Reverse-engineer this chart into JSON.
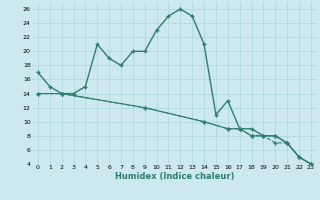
{
  "xlabel": "Humidex (Indice chaleur)",
  "bg_color": "#cce9f0",
  "grid_color": "#b0d8e2",
  "line_color": "#2e7d6e",
  "xlim": [
    -0.5,
    23.5
  ],
  "ylim": [
    4,
    27
  ],
  "xticks": [
    0,
    1,
    2,
    3,
    4,
    5,
    6,
    7,
    8,
    9,
    10,
    11,
    12,
    13,
    14,
    15,
    16,
    17,
    18,
    19,
    20,
    21,
    22,
    23
  ],
  "yticks": [
    4,
    6,
    8,
    10,
    12,
    14,
    16,
    18,
    20,
    22,
    24,
    26
  ],
  "curve1_x": [
    0,
    1,
    2,
    3,
    4,
    5,
    6,
    7,
    8,
    9,
    10,
    11,
    12,
    13,
    14,
    15,
    16,
    17,
    18,
    19,
    20,
    21,
    22,
    23
  ],
  "curve1_y": [
    17,
    15,
    14,
    14,
    15,
    21,
    19,
    18,
    20,
    20,
    23,
    25,
    26,
    25,
    21,
    11,
    13,
    9,
    9,
    8,
    8,
    7,
    5,
    4
  ],
  "curve2_x": [
    0,
    2,
    9,
    14,
    16,
    17,
    18,
    19,
    20,
    21,
    22,
    23
  ],
  "curve2_y": [
    14,
    14,
    12,
    10,
    9,
    9,
    8,
    8,
    8,
    7,
    5,
    4
  ],
  "curve3_x": [
    0,
    2,
    9,
    14,
    16,
    17,
    18,
    19,
    20,
    21,
    22,
    23
  ],
  "curve3_y": [
    14,
    14,
    12,
    10,
    9,
    9,
    8,
    8,
    7,
    7,
    5,
    4
  ]
}
